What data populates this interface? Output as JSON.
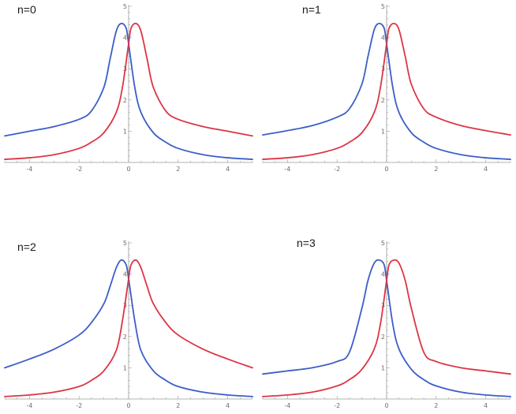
{
  "colors": {
    "series_1": "#3b5ec8",
    "series_2": "#dc3545",
    "axis": "#9a9a9a",
    "tick_text": "#6d6d6d"
  },
  "chart_data": [
    {
      "type": "line",
      "label": "n=0",
      "xlim": [
        -5,
        5
      ],
      "ylim": [
        0,
        5
      ],
      "x_ticks": [
        -4,
        -2,
        0,
        2,
        4
      ],
      "y_ticks": [
        1,
        2,
        3,
        4,
        5
      ],
      "grid": false,
      "series": [
        {
          "color": "#3b5ec8",
          "x": [
            -5,
            -4,
            -3,
            -2,
            -1.5,
            -1,
            -0.75,
            -0.5,
            -0.3,
            -0.1,
            0,
            0.25,
            0.5,
            1,
            1.5,
            2,
            3,
            4,
            5
          ],
          "y": [
            0.85,
            1.0,
            1.15,
            1.38,
            1.65,
            2.4,
            3.3,
            4.2,
            4.45,
            4.3,
            3.8,
            2.4,
            1.6,
            0.95,
            0.65,
            0.45,
            0.25,
            0.15,
            0.1
          ]
        },
        {
          "color": "#dc3545",
          "x": [
            -5,
            -4,
            -3,
            -2,
            -1.5,
            -1,
            -0.5,
            -0.25,
            0,
            0.1,
            0.3,
            0.5,
            0.75,
            1,
            1.5,
            2,
            3,
            4,
            5
          ],
          "y": [
            0.1,
            0.15,
            0.25,
            0.45,
            0.65,
            0.95,
            1.6,
            2.4,
            3.8,
            4.3,
            4.45,
            4.2,
            3.3,
            2.4,
            1.65,
            1.38,
            1.15,
            1.0,
            0.85
          ]
        }
      ]
    },
    {
      "type": "line",
      "label": "n=1",
      "xlim": [
        -5,
        5
      ],
      "ylim": [
        0,
        5
      ],
      "x_ticks": [
        -4,
        -2,
        0,
        2,
        4
      ],
      "y_ticks": [
        1,
        2,
        3,
        4,
        5
      ],
      "grid": false,
      "series": [
        {
          "color": "#3b5ec8",
          "x": [
            -5,
            -4,
            -3,
            -2,
            -1.5,
            -1,
            -0.75,
            -0.5,
            -0.3,
            -0.1,
            0,
            0.25,
            0.5,
            1,
            1.5,
            2,
            3,
            4,
            5
          ],
          "y": [
            0.88,
            1.02,
            1.18,
            1.45,
            1.72,
            2.5,
            3.4,
            4.25,
            4.45,
            4.3,
            3.8,
            2.4,
            1.6,
            0.95,
            0.65,
            0.45,
            0.25,
            0.15,
            0.1
          ]
        },
        {
          "color": "#dc3545",
          "x": [
            -5,
            -4,
            -3,
            -2,
            -1.5,
            -1,
            -0.5,
            -0.25,
            0,
            0.1,
            0.3,
            0.5,
            0.75,
            1,
            1.5,
            2,
            3,
            4,
            5
          ],
          "y": [
            0.1,
            0.15,
            0.25,
            0.45,
            0.65,
            0.95,
            1.6,
            2.4,
            3.8,
            4.3,
            4.45,
            4.25,
            3.4,
            2.5,
            1.72,
            1.45,
            1.18,
            1.02,
            0.88
          ]
        }
      ]
    },
    {
      "type": "line",
      "label": "n=2",
      "xlim": [
        -5,
        5
      ],
      "ylim": [
        0,
        5
      ],
      "x_ticks": [
        -4,
        -2,
        0,
        2,
        4
      ],
      "y_ticks": [
        1,
        2,
        3,
        4,
        5
      ],
      "grid": false,
      "series": [
        {
          "color": "#3b5ec8",
          "x": [
            -5,
            -4,
            -3,
            -2,
            -1.5,
            -1,
            -0.75,
            -0.5,
            -0.3,
            -0.1,
            0,
            0.25,
            0.5,
            1,
            1.5,
            2,
            3,
            4,
            5
          ],
          "y": [
            1.0,
            1.28,
            1.6,
            2.05,
            2.45,
            3.05,
            3.6,
            4.2,
            4.45,
            4.3,
            3.85,
            2.5,
            1.55,
            0.9,
            0.6,
            0.4,
            0.22,
            0.13,
            0.08
          ]
        },
        {
          "color": "#dc3545",
          "x": [
            -5,
            -4,
            -3,
            -2,
            -1.5,
            -1,
            -0.5,
            -0.25,
            0,
            0.1,
            0.3,
            0.5,
            0.75,
            1,
            1.5,
            2,
            3,
            4,
            5
          ],
          "y": [
            0.08,
            0.13,
            0.22,
            0.4,
            0.6,
            0.9,
            1.55,
            2.5,
            3.85,
            4.3,
            4.45,
            4.2,
            3.6,
            3.05,
            2.45,
            2.05,
            1.6,
            1.28,
            1.0
          ]
        }
      ]
    },
    {
      "type": "line",
      "label": "n=3",
      "xlim": [
        -5,
        5
      ],
      "ylim": [
        0,
        5
      ],
      "x_ticks": [
        -4,
        -2,
        0,
        2,
        4
      ],
      "y_ticks": [
        1,
        2,
        3,
        4,
        5
      ],
      "grid": false,
      "series": [
        {
          "color": "#3b5ec8",
          "x": [
            -5,
            -4,
            -3,
            -2,
            -1.5,
            -1,
            -0.75,
            -0.5,
            -0.3,
            -0.1,
            0,
            0.25,
            0.5,
            1,
            1.5,
            2,
            3,
            4,
            5
          ],
          "y": [
            0.8,
            0.9,
            1.0,
            1.2,
            1.5,
            2.9,
            3.8,
            4.35,
            4.45,
            4.3,
            3.8,
            2.4,
            1.6,
            0.95,
            0.62,
            0.42,
            0.22,
            0.13,
            0.08
          ]
        },
        {
          "color": "#dc3545",
          "x": [
            -5,
            -4,
            -3,
            -2,
            -1.5,
            -1,
            -0.5,
            -0.25,
            0,
            0.1,
            0.3,
            0.5,
            0.75,
            1,
            1.5,
            2,
            3,
            4,
            5
          ],
          "y": [
            0.08,
            0.13,
            0.22,
            0.42,
            0.62,
            0.95,
            1.6,
            2.4,
            3.8,
            4.3,
            4.45,
            4.35,
            3.8,
            2.9,
            1.5,
            1.2,
            1.0,
            0.9,
            0.8
          ]
        }
      ]
    }
  ]
}
